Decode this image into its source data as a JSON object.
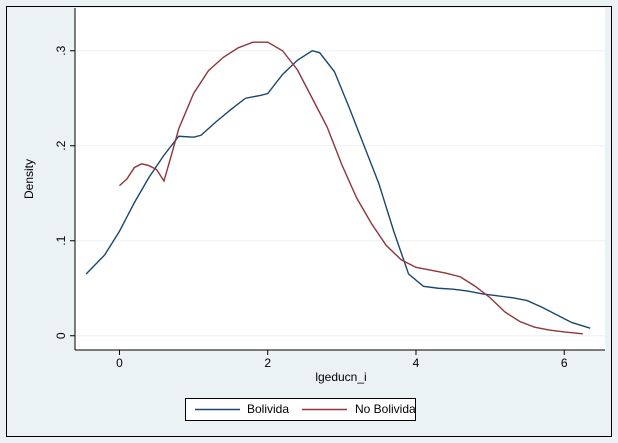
{
  "chart_data": {
    "type": "line",
    "x_label": "lgeducn_i",
    "y_label": "Density",
    "xlim": [
      -0.6,
      6.55
    ],
    "ylim": [
      -0.015,
      0.345
    ],
    "xticks": [
      0,
      2,
      4,
      6
    ],
    "yticks": [
      0,
      {
        "value": 0.1,
        "label": ".1"
      },
      {
        "value": 0.2,
        "label": ".2"
      },
      {
        "value": 0.3,
        "label": ".3"
      }
    ],
    "grid": true,
    "legend": "bottom",
    "series": [
      {
        "name": "Bolivida",
        "color": "#1a476f",
        "x": [
          -0.45,
          -0.2,
          0,
          0.2,
          0.4,
          0.6,
          0.8,
          1.0,
          1.1,
          1.3,
          1.5,
          1.7,
          1.9,
          2.0,
          2.2,
          2.4,
          2.6,
          2.7,
          2.9,
          3.1,
          3.3,
          3.5,
          3.7,
          3.9,
          4.1,
          4.3,
          4.5,
          4.7,
          4.9,
          5.1,
          5.3,
          5.5,
          5.7,
          5.9,
          6.1,
          6.35
        ],
        "values": [
          0.065,
          0.085,
          0.11,
          0.14,
          0.167,
          0.19,
          0.21,
          0.209,
          0.211,
          0.225,
          0.238,
          0.25,
          0.253,
          0.255,
          0.275,
          0.29,
          0.3,
          0.298,
          0.278,
          0.24,
          0.2,
          0.16,
          0.11,
          0.065,
          0.052,
          0.05,
          0.049,
          0.047,
          0.044,
          0.042,
          0.04,
          0.037,
          0.03,
          0.022,
          0.014,
          0.008
        ]
      },
      {
        "name": "No Bolivida",
        "color": "#90353b",
        "x": [
          0,
          0.1,
          0.2,
          0.3,
          0.4,
          0.5,
          0.6,
          0.7,
          0.8,
          1.0,
          1.2,
          1.4,
          1.6,
          1.8,
          2.0,
          2.2,
          2.4,
          2.6,
          2.8,
          3.0,
          3.2,
          3.4,
          3.6,
          3.8,
          4.0,
          4.2,
          4.4,
          4.6,
          4.8,
          5.0,
          5.2,
          5.4,
          5.6,
          5.8,
          6.0,
          6.25
        ],
        "values": [
          0.158,
          0.165,
          0.177,
          0.181,
          0.179,
          0.175,
          0.163,
          0.19,
          0.218,
          0.255,
          0.279,
          0.293,
          0.303,
          0.309,
          0.309,
          0.3,
          0.28,
          0.25,
          0.22,
          0.18,
          0.145,
          0.118,
          0.095,
          0.08,
          0.072,
          0.069,
          0.066,
          0.062,
          0.052,
          0.04,
          0.025,
          0.015,
          0.009,
          0.006,
          0.004,
          0.002
        ]
      }
    ]
  }
}
